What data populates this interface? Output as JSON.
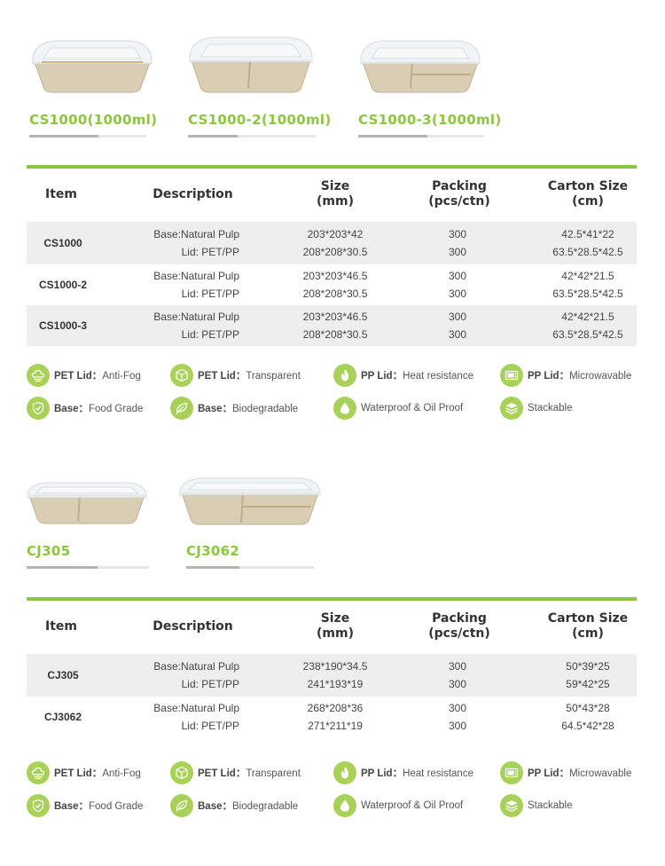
{
  "section1": {
    "products": [
      {
        "code": "CS1000(1000ml)",
        "compartments": 1
      },
      {
        "code": "CS1000-2(1000ml)",
        "compartments": 2
      },
      {
        "code": "CS1000-3(1000ml)",
        "compartments": 3
      }
    ],
    "table": {
      "headers": [
        "Item",
        "Description",
        "Size\n(mm)",
        "Packing\n(pcs/ctn)",
        "Carton Size\n(cm)"
      ],
      "rows": [
        {
          "item": "CS1000",
          "desc": [
            "Base:Natural Pulp",
            "Lid: PET/PP"
          ],
          "size": [
            "203*203*42",
            "208*208*30.5"
          ],
          "packing": [
            "300",
            "300"
          ],
          "carton": [
            "42.5*41*22",
            "63.5*28.5*42.5"
          ]
        },
        {
          "item": "CS1000-2",
          "desc": [
            "Base:Natural Pulp",
            "Lid: PET/PP"
          ],
          "size": [
            "203*203*46.5",
            "208*208*30.5"
          ],
          "packing": [
            "300",
            "300"
          ],
          "carton": [
            "42*42*21.5",
            "63.5*28.5*42.5"
          ]
        },
        {
          "item": "CS1000-3",
          "desc": [
            "Base:Natural Pulp",
            "Lid: PET/PP"
          ],
          "size": [
            "203*203*46.5",
            "208*208*30.5"
          ],
          "packing": [
            "300",
            "300"
          ],
          "carton": [
            "42*42*21.5",
            "63.5*28.5*42.5"
          ]
        }
      ]
    }
  },
  "section2": {
    "products": [
      {
        "code": "CJ305",
        "compartments": 2
      },
      {
        "code": "CJ3062",
        "compartments": 3
      }
    ],
    "table": {
      "headers": [
        "Item",
        "Description",
        "Size\n(mm)",
        "Packing\n(pcs/ctn)",
        "Carton Size\n(cm)"
      ],
      "rows": [
        {
          "item": "CJ305",
          "desc": [
            "Base:Natural Pulp",
            "Lid: PET/PP"
          ],
          "size": [
            "238*190*34.5",
            "241*193*19"
          ],
          "packing": [
            "300",
            "300"
          ],
          "carton": [
            "50*39*25",
            "59*42*25"
          ]
        },
        {
          "item": "CJ3062",
          "desc": [
            "Base:Natural Pulp",
            "Lid: PET/PP"
          ],
          "size": [
            "268*208*36",
            "271*211*19"
          ],
          "packing": [
            "300",
            "300"
          ],
          "carton": [
            "50*43*28",
            "64.5*42*28"
          ]
        }
      ]
    }
  },
  "features": [
    {
      "icon": "cloud-fog-icon",
      "bold": "PET Lid：",
      "text": "Anti-Fog"
    },
    {
      "icon": "cube-icon",
      "bold": "PET Lid：",
      "text": "Transparent"
    },
    {
      "icon": "flame-icon",
      "bold": "PP Lid：",
      "text": "Heat resistance"
    },
    {
      "icon": "microwave-icon",
      "bold": "PP Lid：",
      "text": "Microwavable"
    },
    {
      "icon": "shield-check-icon",
      "bold": "Base：",
      "text": "Food Grade"
    },
    {
      "icon": "leaf-icon",
      "bold": "Base：",
      "text": "Biodegradable"
    },
    {
      "icon": "droplet-icon",
      "bold": "",
      "text": "Waterproof & Oil Proof"
    },
    {
      "icon": "stack-layers-icon",
      "bold": "",
      "text": "Stackable"
    }
  ],
  "colors": {
    "accent": "#8cc63f",
    "icon_bg": "#a8d15a",
    "row_shade": "#eeeeee",
    "pulp": "#d9cdb3"
  }
}
